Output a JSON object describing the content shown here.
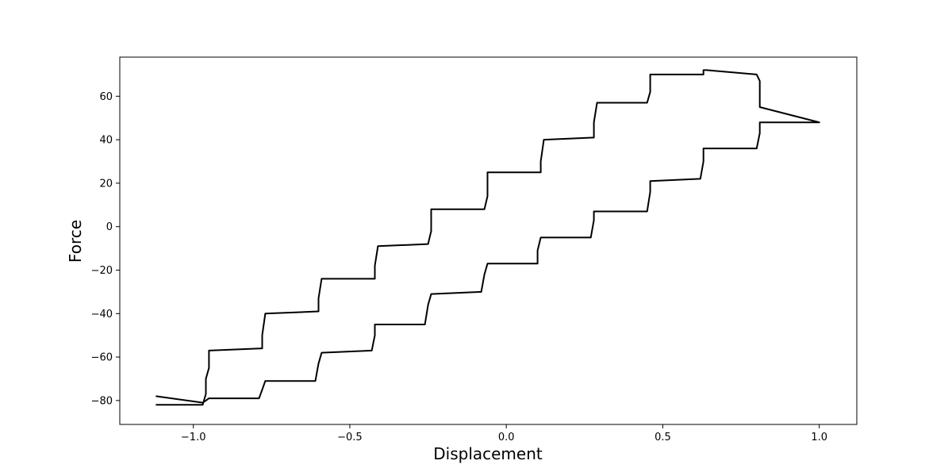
{
  "chart_data": {
    "type": "line",
    "title": "",
    "xlabel": "Displacement",
    "ylabel": "Force",
    "xlim": [
      -1.235,
      1.12
    ],
    "ylim": [
      -91,
      78
    ],
    "grid": false,
    "line_color": "#000000",
    "xticks": [
      {
        "value": -1.0,
        "label": "−1.0"
      },
      {
        "value": -0.5,
        "label": "−0.5"
      },
      {
        "value": 0.0,
        "label": "0.0"
      },
      {
        "value": 0.5,
        "label": "0.5"
      },
      {
        "value": 1.0,
        "label": "1.0"
      }
    ],
    "yticks": [
      {
        "value": -80,
        "label": "−80"
      },
      {
        "value": -60,
        "label": "−60"
      },
      {
        "value": -40,
        "label": "−40"
      },
      {
        "value": -20,
        "label": "−20"
      },
      {
        "value": 0,
        "label": "0"
      },
      {
        "value": 20,
        "label": "20"
      },
      {
        "value": 40,
        "label": "40"
      },
      {
        "value": 60,
        "label": "60"
      }
    ],
    "series": [
      {
        "x": [
          -1.12,
          -0.97,
          -0.96,
          -0.96,
          -0.95,
          -0.95,
          -0.78,
          -0.78,
          -0.77,
          -0.6,
          -0.6,
          -0.59,
          -0.42,
          -0.42,
          -0.41,
          -0.25,
          -0.24,
          -0.24,
          -0.07,
          -0.06,
          -0.06,
          0.11,
          0.11,
          0.12,
          0.28,
          0.28,
          0.29,
          0.45,
          0.46,
          0.46,
          0.63,
          0.63,
          0.64,
          0.8,
          0.81,
          0.81,
          1.0,
          0.81,
          0.81,
          0.8,
          0.63,
          0.63,
          0.62,
          0.46,
          0.46,
          0.45,
          0.28,
          0.28,
          0.27,
          0.11,
          0.1,
          0.1,
          -0.06,
          -0.07,
          -0.08,
          -0.24,
          -0.25,
          -0.26,
          -0.42,
          -0.42,
          -0.43,
          -0.59,
          -0.6,
          -0.61,
          -0.77,
          -0.78,
          -0.79,
          -0.95,
          -0.96,
          -0.97,
          -1.12
        ],
        "y": [
          -82,
          -82,
          -77,
          -70,
          -65,
          -57,
          -56,
          -50,
          -40,
          -39,
          -33,
          -24,
          -24,
          -18,
          -9,
          -8,
          -2,
          8,
          8,
          14,
          25,
          25,
          30,
          40,
          41,
          48,
          57,
          57,
          62,
          70,
          70,
          72,
          72,
          70,
          67,
          55,
          48,
          48,
          43,
          36,
          36,
          30,
          22,
          21,
          16,
          7,
          7,
          3,
          -5,
          -5,
          -11,
          -17,
          -17,
          -22,
          -30,
          -31,
          -36,
          -45,
          -45,
          -50,
          -57,
          -58,
          -63,
          -71,
          -71,
          -75,
          -79,
          -79,
          -80,
          -81,
          -78
        ]
      }
    ]
  }
}
